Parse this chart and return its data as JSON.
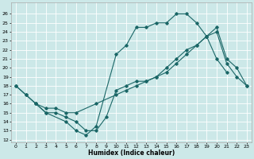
{
  "xlabel": "Humidex (Indice chaleur)",
  "background_color": "#cce8e8",
  "line_color": "#1a6666",
  "grid_color": "#ffffff",
  "xlim": [
    -0.5,
    23.5
  ],
  "ylim": [
    12,
    27
  ],
  "xticks": [
    0,
    1,
    2,
    3,
    4,
    5,
    6,
    7,
    8,
    9,
    10,
    11,
    12,
    13,
    14,
    15,
    16,
    17,
    18,
    19,
    20,
    21,
    22,
    23
  ],
  "yticks": [
    12,
    13,
    14,
    15,
    16,
    17,
    18,
    19,
    20,
    21,
    22,
    23,
    24,
    25,
    26
  ],
  "line1": {
    "x": [
      0,
      1,
      2,
      3,
      5,
      6,
      7,
      8,
      10,
      11,
      12,
      13,
      14,
      15,
      16,
      17,
      18,
      19,
      20,
      21
    ],
    "y": [
      18,
      17,
      16,
      15,
      14,
      13,
      12.5,
      13.5,
      21.5,
      22.5,
      24.5,
      24.5,
      25,
      25,
      26,
      26,
      25,
      23.5,
      21,
      19.5
    ]
  },
  "line2": {
    "x": [
      0,
      1,
      2,
      3,
      4,
      5,
      6,
      8,
      10,
      11,
      12,
      13,
      14,
      15,
      16,
      17,
      18,
      19,
      20,
      21,
      22,
      23
    ],
    "y": [
      18,
      17,
      16,
      15.5,
      15.5,
      15,
      15,
      16,
      17,
      17.5,
      18,
      18.5,
      19,
      20,
      21,
      22,
      22.5,
      23.5,
      24,
      20.5,
      19,
      18
    ]
  },
  "line3": {
    "x": [
      2,
      3,
      4,
      5,
      6,
      7,
      8,
      9,
      10,
      11,
      12,
      13,
      14,
      15,
      16,
      17,
      18,
      19,
      20,
      21,
      22,
      23
    ],
    "y": [
      16,
      15,
      15,
      14.5,
      14,
      13,
      13,
      14.5,
      17.5,
      18,
      18.5,
      18.5,
      19,
      19.5,
      20.5,
      21.5,
      22.5,
      23.5,
      24.5,
      21,
      20,
      18
    ]
  }
}
